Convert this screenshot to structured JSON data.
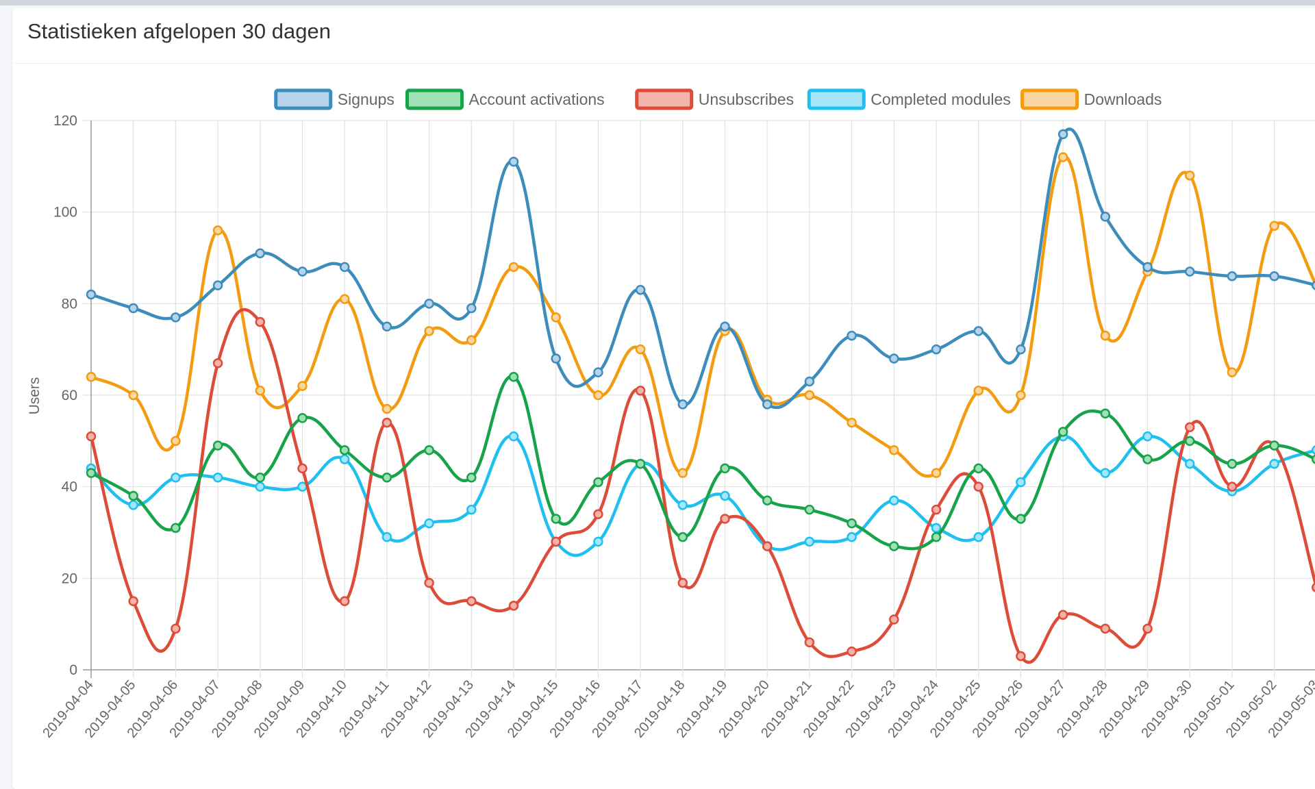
{
  "card": {
    "title": "Statistieken afgelopen 30 dagen"
  },
  "chart_data": {
    "type": "line",
    "title": "",
    "xlabel": "",
    "ylabel": "Users",
    "ylim": [
      0,
      120
    ],
    "yticks": [
      0,
      20,
      40,
      60,
      80,
      100,
      120
    ],
    "grid": true,
    "legend_position": "top",
    "categories": [
      "2019-04-04",
      "2019-04-05",
      "2019-04-06",
      "2019-04-07",
      "2019-04-08",
      "2019-04-09",
      "2019-04-10",
      "2019-04-11",
      "2019-04-12",
      "2019-04-13",
      "2019-04-14",
      "2019-04-15",
      "2019-04-16",
      "2019-04-17",
      "2019-04-18",
      "2019-04-19",
      "2019-04-20",
      "2019-04-21",
      "2019-04-22",
      "2019-04-23",
      "2019-04-24",
      "2019-04-25",
      "2019-04-26",
      "2019-04-27",
      "2019-04-28",
      "2019-04-29",
      "2019-04-30",
      "2019-05-01",
      "2019-05-02",
      "2019-05-03"
    ],
    "series": [
      {
        "name": "Signups",
        "color": "#3c8dbc",
        "fill": "#b7d3ea",
        "values": [
          82,
          79,
          77,
          84,
          91,
          87,
          88,
          75,
          80,
          79,
          111,
          68,
          65,
          83,
          58,
          75,
          58,
          63,
          73,
          68,
          70,
          74,
          70,
          117,
          99,
          88,
          87,
          86,
          86,
          84
        ]
      },
      {
        "name": "Account activations",
        "color": "#17a349",
        "fill": "#9fe0b5",
        "values": [
          43,
          38,
          31,
          49,
          42,
          55,
          48,
          42,
          48,
          42,
          64,
          33,
          41,
          45,
          29,
          44,
          37,
          35,
          32,
          27,
          29,
          44,
          33,
          52,
          56,
          46,
          50,
          45,
          49,
          46
        ]
      },
      {
        "name": "Unsubscribes",
        "color": "#dd4b39",
        "fill": "#f3b2aa",
        "values": [
          51,
          15,
          9,
          67,
          76,
          44,
          15,
          54,
          19,
          15,
          14,
          28,
          34,
          61,
          19,
          33,
          27,
          6,
          4,
          11,
          35,
          40,
          3,
          12,
          9,
          9,
          53,
          40,
          49,
          18
        ]
      },
      {
        "name": "Completed modules",
        "color": "#1fc0ef",
        "fill": "#a5e6f8",
        "values": [
          44,
          36,
          42,
          42,
          40,
          40,
          46,
          29,
          32,
          35,
          51,
          28,
          28,
          45,
          36,
          38,
          27,
          28,
          29,
          37,
          31,
          29,
          41,
          51,
          43,
          51,
          45,
          39,
          45,
          48
        ]
      },
      {
        "name": "Downloads",
        "color": "#f39c12",
        "fill": "#fad7a0",
        "values": [
          64,
          60,
          50,
          96,
          61,
          62,
          81,
          57,
          74,
          72,
          88,
          77,
          60,
          70,
          43,
          74,
          59,
          60,
          54,
          48,
          43,
          61,
          60,
          112,
          73,
          87,
          108,
          65,
          97,
          84
        ]
      }
    ]
  }
}
